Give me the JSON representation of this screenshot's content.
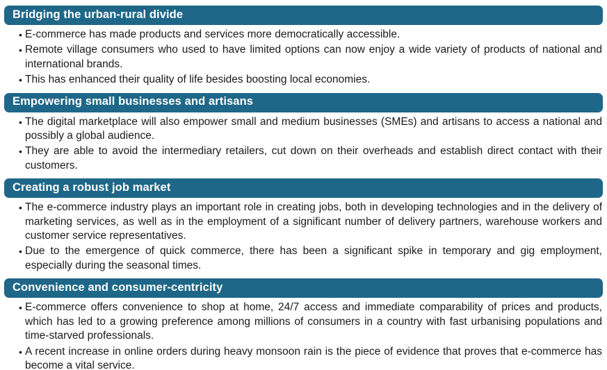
{
  "page": {
    "colors": {
      "header_bar": "#1E6788",
      "header_text": "#FFFFFF",
      "body_text": "#1A1A1A",
      "background": "#FFFFFF"
    }
  },
  "sections": [
    {
      "title": "Bridging the urban-rural divide",
      "bullets": [
        "E-commerce has made products and services more democratically accessible.",
        "Remote village consumers who used to have limited options can now enjoy a wide variety of products of national and international brands.",
        "This has enhanced their quality of life besides boosting local economies."
      ]
    },
    {
      "title": "Empowering small businesses and artisans",
      "bullets": [
        "The digital marketplace will also empower small and medium businesses (SMEs) and artisans to access a national and possibly a global audience.",
        "They are able to avoid the intermediary retailers, cut down on their overheads and establish direct contact with their customers."
      ]
    },
    {
      "title": "Creating a robust job market",
      "bullets": [
        "The e-commerce industry plays an important role in creating jobs, both in developing technologies and in the delivery of marketing services, as well as in the employment of a significant number of delivery partners, warehouse workers and customer service representatives.",
        "Due to the emergence of quick commerce, there has been a significant spike in temporary and gig employment, especially during the seasonal times."
      ]
    },
    {
      "title": "Convenience and consumer-centricity",
      "bullets": [
        "E-commerce offers convenience to shop at home, 24/7 access and immediate comparability of prices and products, which has led to a growing preference among millions of consumers in a country with fast urbanising populations and time-starved professionals.",
        "A recent increase in online orders during heavy monsoon rain is the piece of evidence that proves that e-commerce has become a vital service."
      ]
    }
  ]
}
